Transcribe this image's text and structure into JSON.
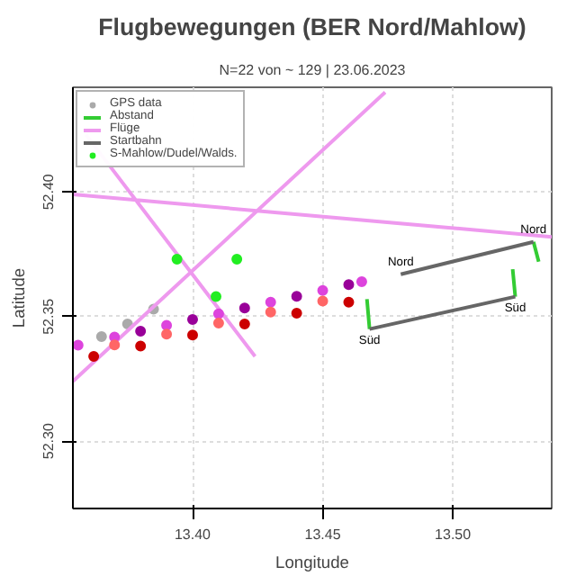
{
  "chart_data": {
    "type": "scatter",
    "title": "Flugbewegungen (BER Nord/Mahlow)",
    "subtitle": "N=22 von ~ 129 | 23.06.2023",
    "xlabel": "Longitude",
    "ylabel": "Latitude",
    "xlim": [
      13.354,
      13.538
    ],
    "ylim": [
      52.273,
      52.442
    ],
    "xticks": [
      {
        "value": 13.4,
        "label": "13.40"
      },
      {
        "value": 13.45,
        "label": "13.45"
      },
      {
        "value": 13.5,
        "label": "13.50"
      }
    ],
    "yticks": [
      {
        "value": 52.3,
        "label": "52.30"
      },
      {
        "value": 52.35,
        "label": "52.35"
      },
      {
        "value": 52.4,
        "label": "52.40"
      }
    ],
    "grid": true,
    "legend": "top left",
    "series": [
      {
        "name": "GPS data",
        "color": "#aaaaaa",
        "x": [
          13.365,
          13.375,
          13.385
        ],
        "values": [
          52.342,
          52.347,
          52.353
        ]
      },
      {
        "name": "Abstand",
        "type": "line",
        "color": "#33cc33",
        "x": [
          13.467,
          13.468,
          null,
          13.523,
          13.524,
          null,
          13.531,
          13.533
        ],
        "values": [
          52.357,
          52.345,
          null,
          52.369,
          52.358,
          null,
          52.38,
          52.372
        ]
      },
      {
        "name": "Flüge",
        "type": "line",
        "color": "#ee99ee",
        "x": [
          13.354,
          13.538,
          null,
          13.354,
          13.474,
          null,
          13.359,
          13.424
        ],
        "values": [
          52.399,
          52.382,
          null,
          52.324,
          52.44,
          null,
          52.423,
          52.334
        ]
      },
      {
        "name": "Startbahn",
        "type": "line",
        "color": "#666666",
        "x": [
          13.48,
          13.531,
          null,
          13.468,
          13.524
        ],
        "values": [
          52.367,
          52.38,
          null,
          52.345,
          52.358
        ]
      },
      {
        "color": "#dd44dd",
        "x": [
          13.356,
          13.37,
          13.39,
          13.41,
          13.43,
          13.45,
          13.465
        ],
        "values": [
          52.3385,
          52.3418,
          52.3465,
          52.3511,
          52.3558,
          52.3605,
          52.364
        ]
      },
      {
        "color": "#990099",
        "x": [
          13.38,
          13.4,
          13.42,
          13.44,
          13.46
        ],
        "values": [
          52.3441,
          52.3488,
          52.3534,
          52.3581,
          52.3628
        ]
      },
      {
        "color": "#ff6666",
        "x": [
          13.37,
          13.39,
          13.41,
          13.43,
          13.45
        ],
        "values": [
          52.3386,
          52.343,
          52.3474,
          52.3518,
          52.3562
        ]
      },
      {
        "color": "#cc0000",
        "x": [
          13.362,
          13.38,
          13.4,
          13.42,
          13.44,
          13.46
        ],
        "values": [
          52.334,
          52.3382,
          52.3426,
          52.347,
          52.3514,
          52.3558
        ]
      },
      {
        "name": "S-Mahlow/Dudel/Walds.",
        "color": "#22ee22",
        "x": [
          13.394,
          13.417,
          13.409
        ],
        "values": [
          52.373,
          52.373,
          52.358
        ]
      }
    ],
    "annotations": [
      {
        "text": "Nord",
        "x": 13.48,
        "y": 52.367
      },
      {
        "text": "Nord",
        "x": 13.531,
        "y": 52.38
      },
      {
        "text": "Süd",
        "x": 13.468,
        "y": 52.345
      },
      {
        "text": "Süd",
        "x": 13.524,
        "y": 52.358
      }
    ]
  }
}
